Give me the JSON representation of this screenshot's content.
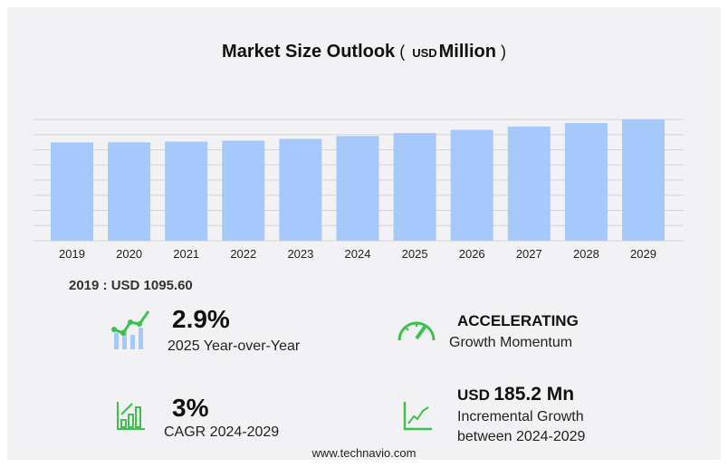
{
  "chart_data": {
    "type": "bar",
    "title": "Market Size Outlook",
    "unit_prefix": "USD",
    "unit_label": "Million",
    "categories": [
      "2019",
      "2020",
      "2021",
      "2022",
      "2023",
      "2024",
      "2025",
      "2026",
      "2027",
      "2028",
      "2029"
    ],
    "values": [
      1095.6,
      1097,
      1105,
      1115,
      1135,
      1167,
      1201,
      1236,
      1273,
      1311,
      1352
    ],
    "ylim": [
      0,
      1352
    ],
    "grid": true,
    "bar_color": "#a6c8fb"
  },
  "base_year_text": "2019 : USD  1095.60",
  "stats": {
    "yoy": {
      "value": "2.9%",
      "label": "2025 Year-over-Year"
    },
    "momentum": {
      "value": "ACCELERATING",
      "label": "Growth Momentum"
    },
    "cagr": {
      "value": "3%",
      "label": "CAGR 2024-2029"
    },
    "incremental": {
      "prefix": "USD",
      "value": "185.2 Mn",
      "label1": "Incremental Growth",
      "label2": "between 2024-2029"
    }
  },
  "accent": "#3cc24a",
  "footer": "www.technavio.com"
}
